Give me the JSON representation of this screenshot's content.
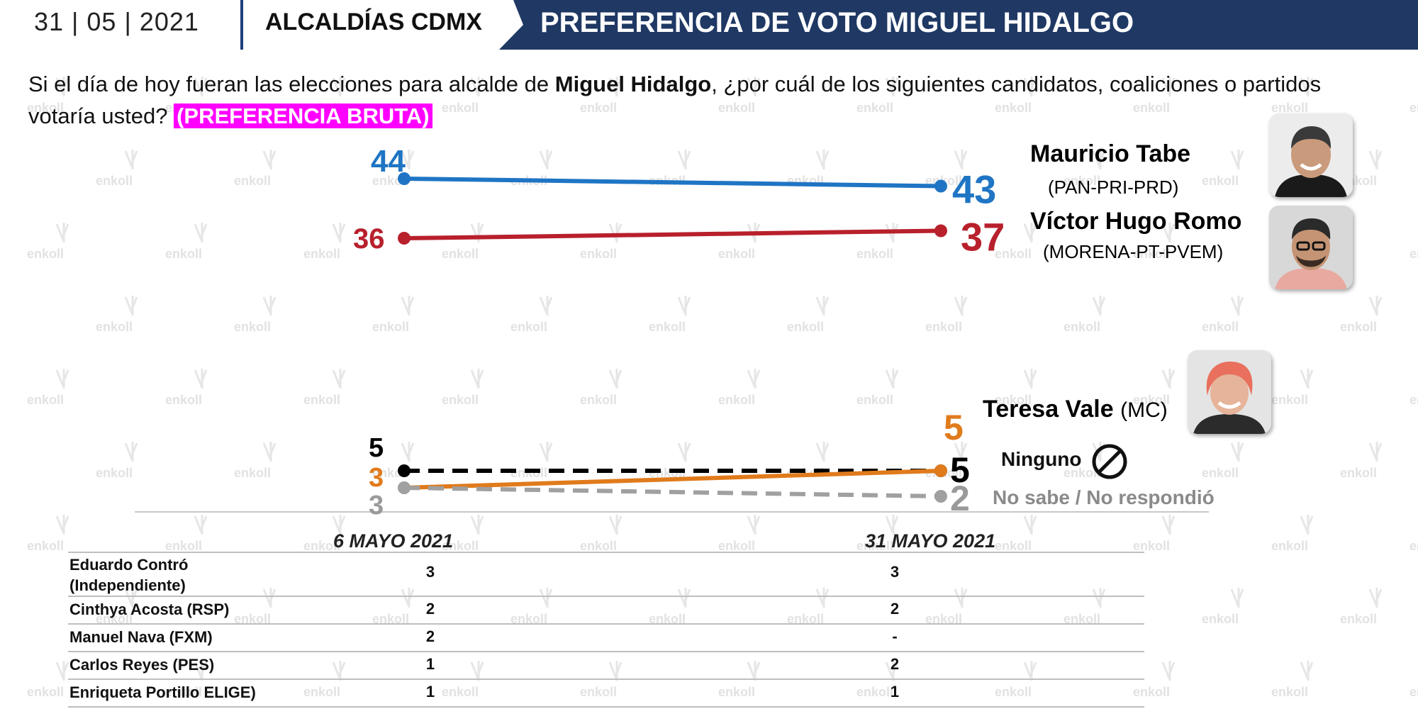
{
  "header": {
    "date": "31 | 05 | 2021",
    "section": "ALCALDÍAS CDMX",
    "title": "PREFERENCIA DE VOTO MIGUEL HIDALGO"
  },
  "question": {
    "part1": "Si el día de hoy fueran las elecciones para alcalde de ",
    "bold": "Miguel Hidalgo",
    "part2": ", ¿por cuál de los siguientes candidatos, coaliciones o partidos votaría usted? ",
    "tag": "(PREFERENCIA BRUTA)"
  },
  "watermark": "enkoll",
  "colors": {
    "tabe": "#1f75c4",
    "romo": "#b8202c",
    "vale": "#e07b1c",
    "ninguno": "#000000",
    "nosabe": "#a0a0a0",
    "banner": "#1f3864",
    "tag": "#ff00ff"
  },
  "candidates": {
    "tabe": {
      "name": "Mauricio Tabe",
      "party": "(PAN-PRI-PRD)",
      "avatar_icon": "person-photo-icon"
    },
    "romo": {
      "name": "Víctor Hugo Romo",
      "party": "(MORENA-PT-PVEM)",
      "avatar_icon": "person-photo-icon"
    },
    "vale": {
      "name": "Teresa Vale",
      "party": "(MC)",
      "avatar_icon": "person-photo-icon"
    }
  },
  "labels": {
    "ninguno": "Ninguno",
    "ninguno_icon": "prohibited-icon",
    "nosabe": "No sabe / No respondió"
  },
  "chart_data": {
    "type": "line",
    "x": [
      "6 MAYO 2021",
      "31 MAYO 2021"
    ],
    "series": [
      {
        "name": "Mauricio Tabe",
        "values": [
          44,
          43
        ],
        "color": "#1f75c4",
        "dashed": false
      },
      {
        "name": "Víctor Hugo Romo",
        "values": [
          36,
          37
        ],
        "color": "#b8202c",
        "dashed": false
      },
      {
        "name": "Ninguno",
        "values": [
          5,
          5
        ],
        "color": "#000000",
        "dashed": true
      },
      {
        "name": "Teresa Vale",
        "values": [
          3,
          5
        ],
        "color": "#e07b1c",
        "dashed": false
      },
      {
        "name": "No sabe / No respondió",
        "values": [
          3,
          2
        ],
        "color": "#a0a0a0",
        "dashed": true
      }
    ]
  },
  "table": {
    "dates": [
      "6  MAYO 2021",
      "31  MAYO 2021"
    ],
    "rows": [
      {
        "name": "Eduardo Contró (Independiente)",
        "v1": "3",
        "v2": "3"
      },
      {
        "name": "Cinthya Acosta (RSP)",
        "v1": "2",
        "v2": "2"
      },
      {
        "name": "Manuel Nava (FXM)",
        "v1": "2",
        "v2": "-"
      },
      {
        "name": "Carlos Reyes (PES)",
        "v1": "1",
        "v2": "2"
      },
      {
        "name": "Enriqueta Portillo ELIGE)",
        "v1": "1",
        "v2": "1"
      }
    ]
  }
}
